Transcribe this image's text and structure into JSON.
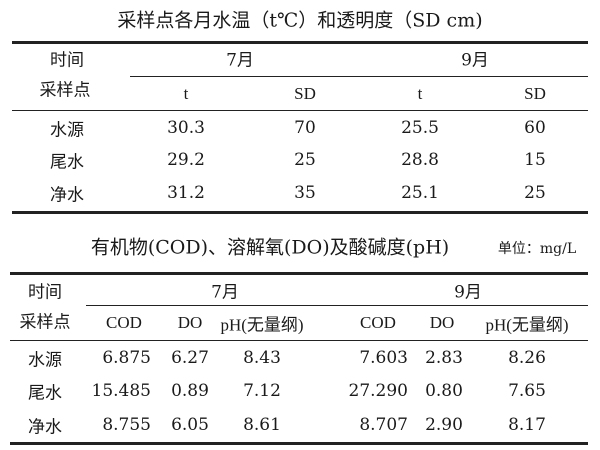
{
  "table1": {
    "title": "采样点各月水温（t℃）和透明度（SD cm)",
    "corner_top": "时间",
    "corner_bottom": "采样点",
    "months": [
      "7月",
      "9月"
    ],
    "subheaders": [
      "t",
      "SD",
      "t",
      "SD"
    ],
    "rows": [
      {
        "site": "水源",
        "values": [
          "30.3",
          "70",
          "25.5",
          "60"
        ]
      },
      {
        "site": "尾水",
        "values": [
          "29.2",
          "25",
          "28.8",
          "15"
        ]
      },
      {
        "site": "净水",
        "values": [
          "31.2",
          "35",
          "25.1",
          "25"
        ]
      }
    ]
  },
  "table2": {
    "title": "有机物(COD)、溶解氧(DO)及酸碱度(pH)",
    "unit": "单位：mg/L",
    "corner_top": "时间",
    "corner_bottom": "采样点",
    "months": [
      "7月",
      "9月"
    ],
    "subheaders": [
      "COD",
      "DO",
      "pH(无量纲)",
      "COD",
      "DO",
      "pH(无量纲)"
    ],
    "rows": [
      {
        "site": "水源",
        "values": [
          "6.875",
          "6.27",
          "8.43",
          "7.603",
          "2.83",
          "8.26"
        ]
      },
      {
        "site": "尾水",
        "values": [
          "15.485",
          "0.89",
          "7.12",
          "27.290",
          "0.80",
          "7.65"
        ]
      },
      {
        "site": "净水",
        "values": [
          "8.755",
          "6.05",
          "8.61",
          "8.707",
          "2.90",
          "8.17"
        ]
      }
    ]
  }
}
